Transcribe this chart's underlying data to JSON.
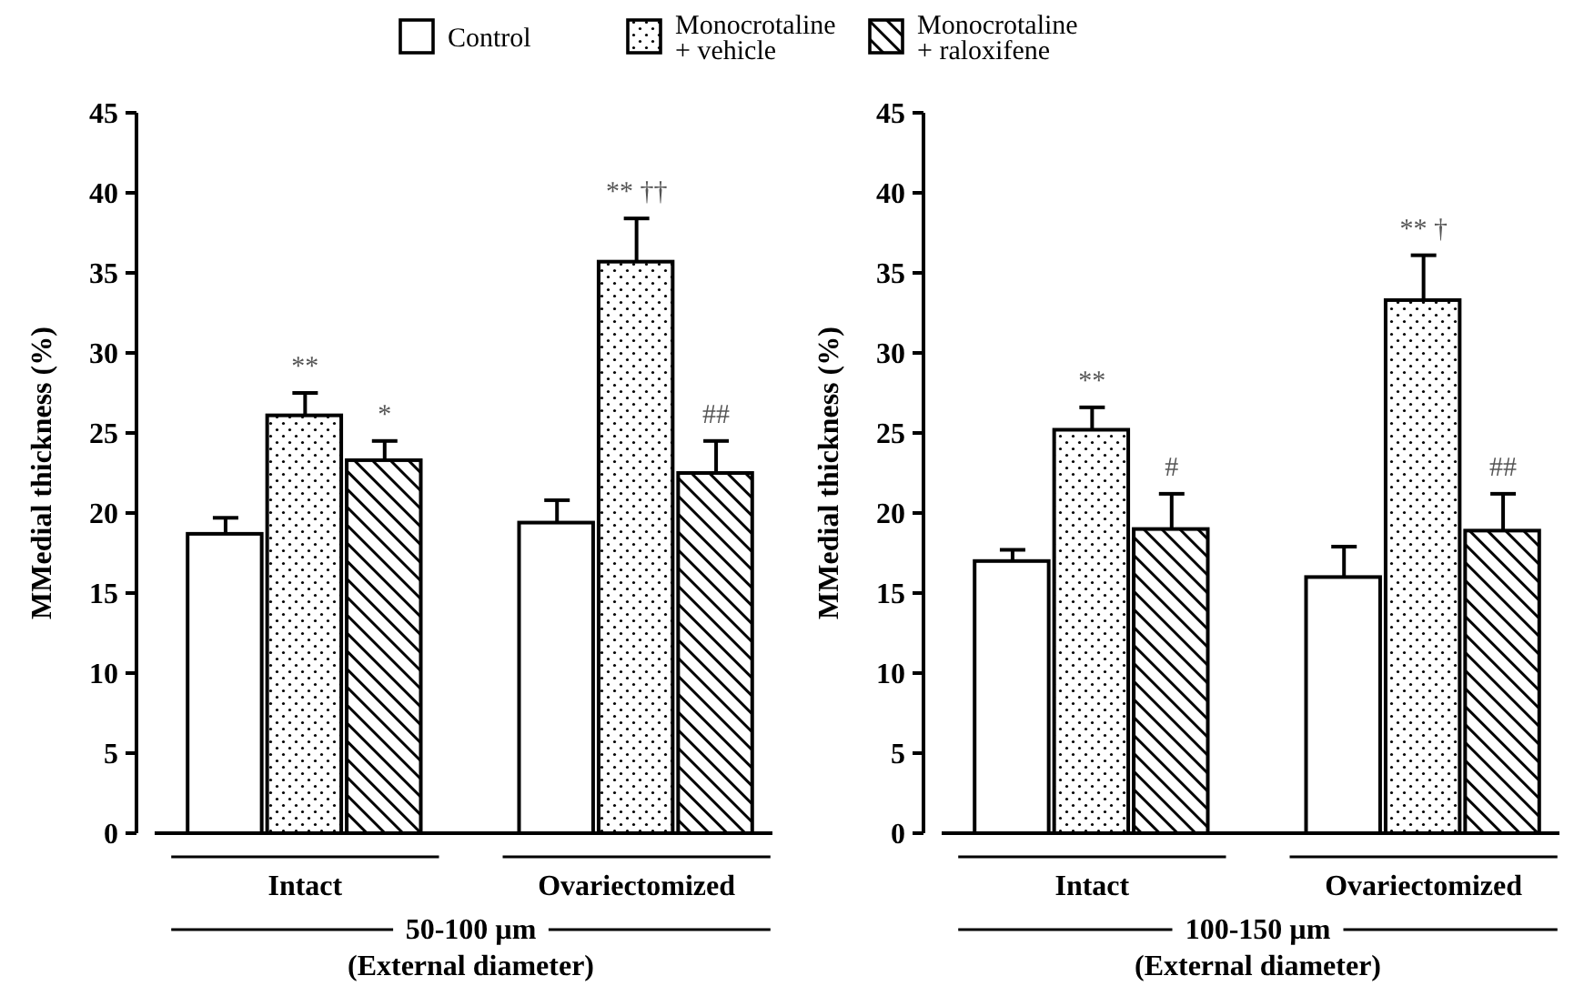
{
  "chart_data": [
    {
      "type": "bar",
      "xlabel": "50-100 µm\n(External diameter)",
      "ylabel": "MMedial thickness (%)",
      "categories": [
        "Intact",
        "Ovariectomized"
      ],
      "ylim": [
        0,
        45
      ],
      "yticks": [
        0,
        5,
        10,
        15,
        20,
        25,
        30,
        35,
        40,
        45
      ],
      "legend": "top",
      "series": [
        {
          "name": "Control",
          "color": "#ffffff",
          "values": [
            18.7,
            19.4
          ],
          "errors": [
            1.0,
            1.4
          ]
        },
        {
          "name": "Monocrotaline\n+ vehicle",
          "color": "#000000",
          "values": [
            26.1,
            35.7
          ],
          "errors": [
            1.4,
            2.7
          ]
        },
        {
          "name": "Monocrotaline\n+ raloxifene",
          "color": "#000000",
          "values": [
            23.3,
            22.5
          ],
          "errors": [
            1.2,
            2.0
          ]
        }
      ],
      "annotations": [
        "**",
        "*",
        "** ††",
        "##"
      ]
    },
    {
      "type": "bar",
      "xlabel": "100-150 µm\n(External diameter)",
      "ylabel": "MMedial thickness (%)",
      "categories": [
        "Intact",
        "Ovariectomized"
      ],
      "ylim": [
        0,
        45
      ],
      "yticks": [
        0,
        5,
        10,
        15,
        20,
        25,
        30,
        35,
        40,
        45
      ],
      "series": [
        {
          "color": "#ffffff",
          "values": [
            17.0,
            16.0
          ],
          "errors": [
            0.7,
            1.9
          ]
        },
        {
          "color": "#000000",
          "values": [
            25.2,
            33.3
          ],
          "errors": [
            1.4,
            2.8
          ]
        },
        {
          "color": "#000000",
          "values": [
            19.0,
            18.9
          ],
          "errors": [
            2.2,
            2.3
          ]
        }
      ],
      "annotations": [
        "**",
        "#",
        "** †",
        "##"
      ]
    }
  ]
}
